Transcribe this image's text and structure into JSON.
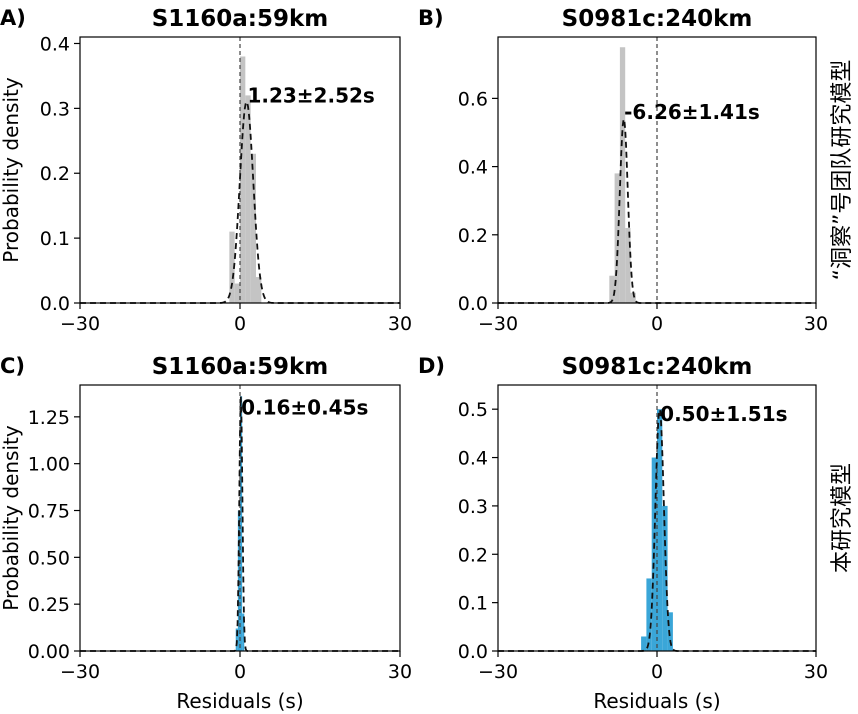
{
  "row_labels": [
    "“洞察”号团队研究模型",
    "本研究模型"
  ],
  "chart_data": [
    {
      "type": "area",
      "panel": "A)",
      "title": "S1160a:59km",
      "xlabel": "",
      "ylabel": "Probability density",
      "xlim": [
        -30,
        30
      ],
      "ylim": [
        0,
        0.41
      ],
      "xticks": [
        -30,
        0,
        30
      ],
      "yticks": [
        0.0,
        0.1,
        0.2,
        0.3,
        0.4
      ],
      "ytick_labels": [
        "0.0",
        "0.1",
        "0.2",
        "0.3",
        "0.4"
      ],
      "hist_color": "#c4c4c4",
      "hist_x": [
        -1.5,
        -0.5,
        0.5,
        1.5,
        2.5,
        3.5
      ],
      "hist_y": [
        0.11,
        0.03,
        0.38,
        0.32,
        0.23,
        0.04
      ],
      "fit_mean": 1.23,
      "fit_sd": 1.26,
      "fit_peak": 0.31,
      "annotation": "1.23±2.52s",
      "annotation_pos": [
        1.4,
        0.32
      ],
      "vline": 0
    },
    {
      "type": "area",
      "panel": "B)",
      "title": "S0981c:240km",
      "xlabel": "",
      "ylabel": "",
      "xlim": [
        -30,
        30
      ],
      "ylim": [
        0,
        0.78
      ],
      "xticks": [
        -30,
        0,
        30
      ],
      "yticks": [
        0.0,
        0.2,
        0.4,
        0.6
      ],
      "ytick_labels": [
        "0.0",
        "0.2",
        "0.4",
        "0.6"
      ],
      "hist_color": "#c4c4c4",
      "hist_x": [
        -8.5,
        -7.5,
        -6.5,
        -5.5,
        -4.5
      ],
      "hist_y": [
        0.08,
        0.38,
        0.75,
        0.22,
        0.03
      ],
      "fit_mean": -6.26,
      "fit_sd": 0.75,
      "fit_peak": 0.54,
      "annotation": "-6.26±1.41s",
      "annotation_pos": [
        -6.2,
        0.56
      ],
      "vline": 0
    },
    {
      "type": "area",
      "panel": "C)",
      "title": "S1160a:59km",
      "xlabel": "Residuals (s)",
      "ylabel": "Probability density",
      "xlim": [
        -30,
        30
      ],
      "ylim": [
        0,
        1.42
      ],
      "xticks": [
        -30,
        0,
        30
      ],
      "yticks": [
        0.0,
        0.25,
        0.5,
        0.75,
        1.0,
        1.25
      ],
      "ytick_labels": [
        "0.00",
        "0.25",
        "0.50",
        "0.75",
        "1.00",
        "1.25"
      ],
      "hist_color": "#3aa6d8",
      "hist_x": [
        -0.6,
        -0.2,
        0.2,
        0.6
      ],
      "hist_y": [
        0.12,
        0.75,
        1.36,
        0.2
      ],
      "fit_mean": 0.16,
      "fit_sd": 0.29,
      "fit_peak": 1.36,
      "annotation": "0.16±0.45s",
      "annotation_pos": [
        0.2,
        1.3
      ],
      "vline": 0
    },
    {
      "type": "area",
      "panel": "D)",
      "title": "S0981c:240km",
      "xlabel": "Residuals (s)",
      "ylabel": "",
      "xlim": [
        -30,
        30
      ],
      "ylim": [
        0,
        0.55
      ],
      "xticks": [
        -30,
        0,
        30
      ],
      "yticks": [
        0.0,
        0.1,
        0.2,
        0.3,
        0.4,
        0.5
      ],
      "ytick_labels": [
        "0.0",
        "0.1",
        "0.2",
        "0.3",
        "0.4",
        "0.5"
      ],
      "hist_color": "#3aa6d8",
      "hist_x": [
        -2.5,
        -1.5,
        -0.5,
        0.5,
        1.5,
        2.5
      ],
      "hist_y": [
        0.03,
        0.15,
        0.4,
        0.5,
        0.3,
        0.08
      ],
      "fit_mean": 0.5,
      "fit_sd": 0.8,
      "fit_peak": 0.5,
      "annotation": "0.50±1.51s",
      "annotation_pos": [
        0.6,
        0.49
      ],
      "vline": 0
    }
  ]
}
